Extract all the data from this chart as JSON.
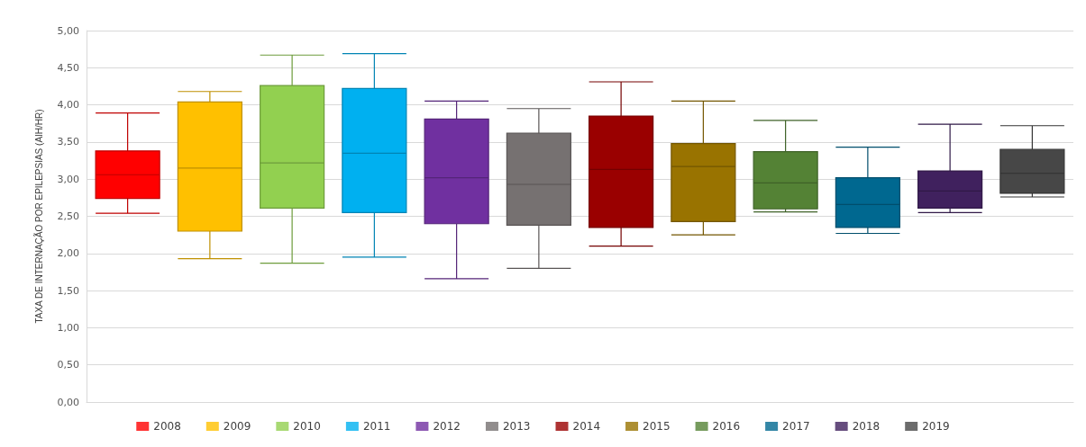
{
  "chart_data": {
    "type": "box",
    "ylabel": "TAXA DE INTERNAÇÃO POR EPILEPSIAS (AIH/HR)",
    "categories": [
      null,
      null,
      null,
      null,
      null,
      null,
      null,
      null,
      null,
      null,
      null,
      null
    ],
    "ylim": [
      0,
      5
    ],
    "yticks": [
      {
        "value": 0,
        "label": "0,00"
      },
      {
        "value": 0.5,
        "label": "0,50"
      },
      {
        "value": 1,
        "label": "1,00"
      },
      {
        "value": 1.5,
        "label": "1,50"
      },
      {
        "value": 2,
        "label": "2,00"
      },
      {
        "value": 2.5,
        "label": "2,50"
      },
      {
        "value": 3,
        "label": "3,00"
      },
      {
        "value": 3.5,
        "label": "3,50"
      },
      {
        "value": 4,
        "label": "4,00"
      },
      {
        "value": 4.5,
        "label": "4,50"
      },
      {
        "value": 5,
        "label": "5,00"
      }
    ],
    "grid": "y",
    "legend": "bottom",
    "series": [
      {
        "name": "2008",
        "color": "#ff0000",
        "boxes": [
          {
            "low": 2.54,
            "q1": 2.74,
            "median": 3.06,
            "q3": 3.38,
            "high": 3.89
          },
          null,
          null,
          null,
          null,
          null,
          null,
          null,
          null,
          null,
          null,
          null
        ]
      },
      {
        "name": "2009",
        "color": "#ffc000",
        "boxes": [
          null,
          {
            "low": 1.93,
            "q1": 2.3,
            "median": 3.15,
            "q3": 4.04,
            "high": 4.18
          },
          null,
          null,
          null,
          null,
          null,
          null,
          null,
          null,
          null,
          null
        ]
      },
      {
        "name": "2010",
        "color": "#92d050",
        "boxes": [
          null,
          null,
          {
            "low": 1.87,
            "q1": 2.61,
            "median": 3.22,
            "q3": 4.26,
            "high": 4.67
          },
          null,
          null,
          null,
          null,
          null,
          null,
          null,
          null,
          null
        ]
      },
      {
        "name": "2011",
        "color": "#00b0f0",
        "boxes": [
          null,
          null,
          null,
          {
            "low": 1.95,
            "q1": 2.55,
            "median": 3.35,
            "q3": 4.22,
            "high": 4.69
          },
          null,
          null,
          null,
          null,
          null,
          null,
          null,
          null
        ]
      },
      {
        "name": "2012",
        "color": "#7030a0",
        "boxes": [
          null,
          null,
          null,
          null,
          {
            "low": 1.66,
            "q1": 2.4,
            "median": 3.02,
            "q3": 3.81,
            "high": 4.05
          },
          null,
          null,
          null,
          null,
          null,
          null,
          null
        ]
      },
      {
        "name": "2013",
        "color": "#767171",
        "boxes": [
          null,
          null,
          null,
          null,
          null,
          {
            "low": 1.8,
            "q1": 2.38,
            "median": 2.93,
            "q3": 3.62,
            "high": 3.95
          },
          null,
          null,
          null,
          null,
          null,
          null
        ]
      },
      {
        "name": "2014",
        "color": "#9a0000",
        "boxes": [
          null,
          null,
          null,
          null,
          null,
          null,
          {
            "low": 2.1,
            "q1": 2.35,
            "median": 3.13,
            "q3": 3.85,
            "high": 4.31
          },
          null,
          null,
          null,
          null,
          null
        ]
      },
      {
        "name": "2015",
        "color": "#997300",
        "boxes": [
          null,
          null,
          null,
          null,
          null,
          null,
          null,
          {
            "low": 2.25,
            "q1": 2.43,
            "median": 3.17,
            "q3": 3.48,
            "high": 4.05
          },
          null,
          null,
          null,
          null
        ]
      },
      {
        "name": "2016",
        "color": "#548235",
        "boxes": [
          null,
          null,
          null,
          null,
          null,
          null,
          null,
          null,
          {
            "low": 2.56,
            "q1": 2.6,
            "median": 2.95,
            "q3": 3.37,
            "high": 3.79
          },
          null,
          null,
          null
        ]
      },
      {
        "name": "2017",
        "color": "#006890",
        "boxes": [
          null,
          null,
          null,
          null,
          null,
          null,
          null,
          null,
          null,
          {
            "low": 2.27,
            "q1": 2.35,
            "median": 2.66,
            "q3": 3.02,
            "high": 3.43
          },
          null,
          null
        ]
      },
      {
        "name": "2018",
        "color": "#40215e",
        "boxes": [
          null,
          null,
          null,
          null,
          null,
          null,
          null,
          null,
          null,
          null,
          {
            "low": 2.55,
            "q1": 2.61,
            "median": 2.84,
            "q3": 3.11,
            "high": 3.74
          },
          null
        ]
      },
      {
        "name": "2019",
        "color": "#474747",
        "boxes": [
          null,
          null,
          null,
          null,
          null,
          null,
          null,
          null,
          null,
          null,
          null,
          {
            "low": 2.76,
            "q1": 2.81,
            "median": 3.08,
            "q3": 3.4,
            "high": 3.72
          }
        ]
      }
    ]
  }
}
